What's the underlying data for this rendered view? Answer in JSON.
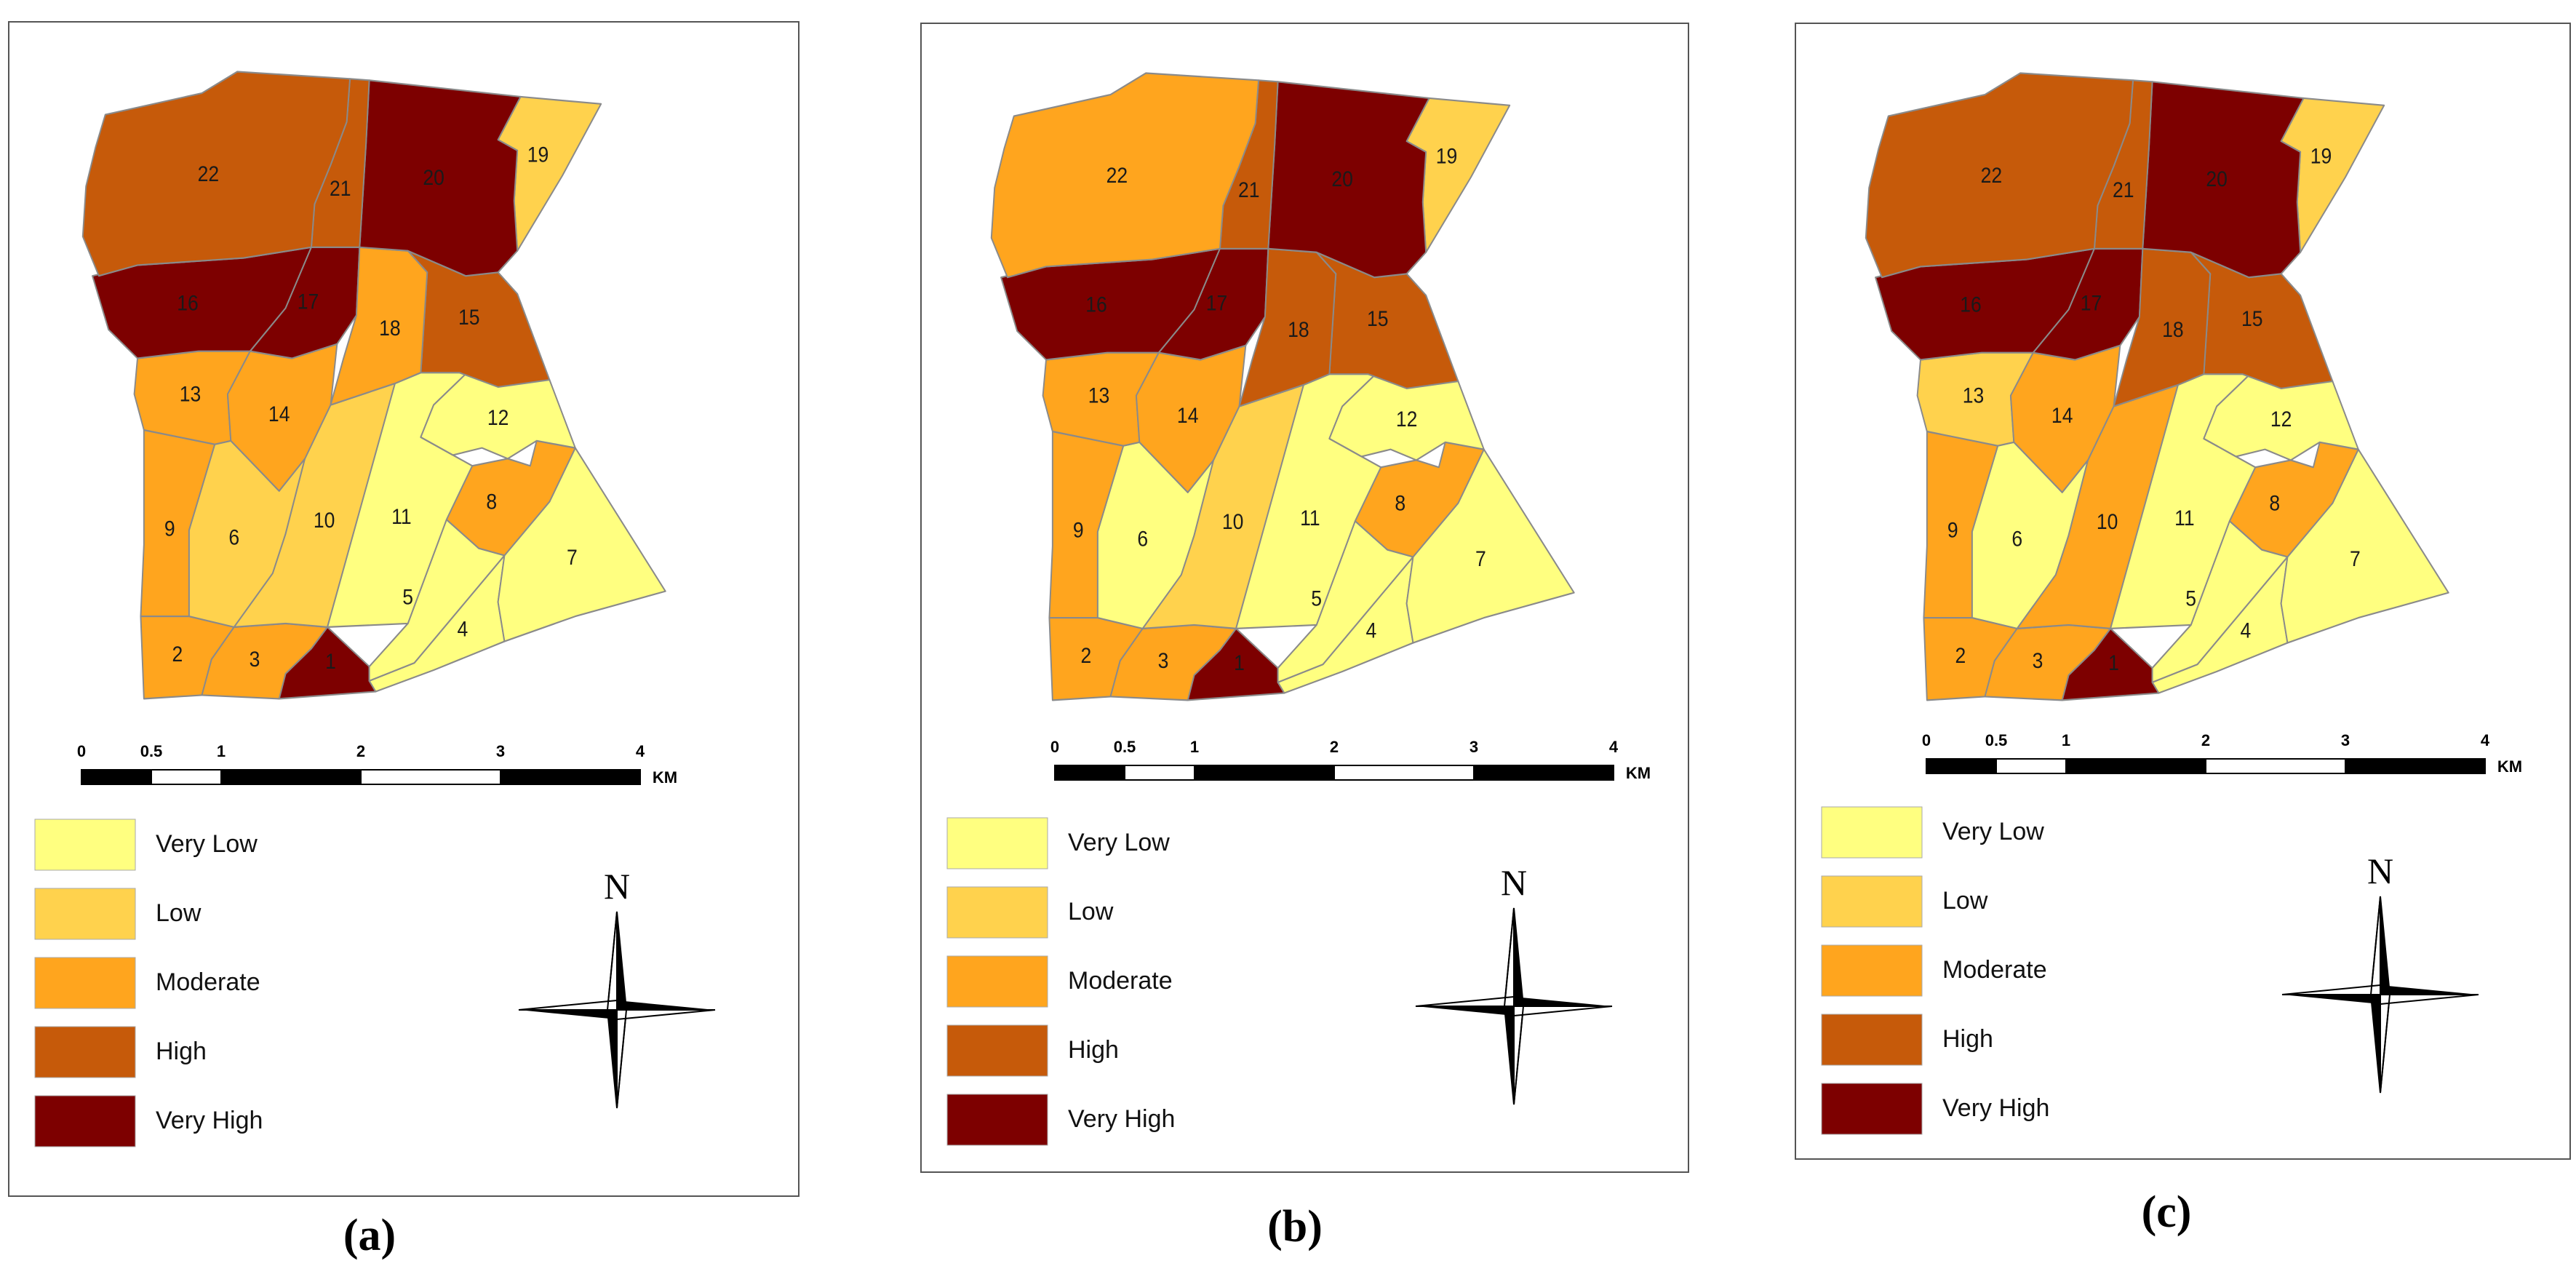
{
  "classes": [
    {
      "key": "VL",
      "label": "Very Low",
      "color": "#FFFF80"
    },
    {
      "key": "L",
      "label": "Low",
      "color": "#FFD24D"
    },
    {
      "key": "M",
      "label": "Moderate",
      "color": "#FFA51E"
    },
    {
      "key": "H",
      "label": "High",
      "color": "#C65A0A"
    },
    {
      "key": "VH",
      "label": "Very High",
      "color": "#7D0000"
    }
  ],
  "scale_bar": {
    "ticks": [
      "0",
      "0.5",
      "1",
      "2",
      "3",
      "4"
    ],
    "unit": "KM"
  },
  "north_label": "N",
  "panels": [
    {
      "label": "(a)",
      "zones": {
        "1": "VH",
        "2": "M",
        "3": "M",
        "4": "VL",
        "5": "VL",
        "6": "L",
        "7": "VL",
        "8": "M",
        "9": "M",
        "10": "L",
        "11": "VL",
        "12": "VL",
        "13": "M",
        "14": "M",
        "15": "H",
        "16": "VH",
        "17": "VH",
        "18": "M",
        "19": "L",
        "20": "VH",
        "21": "H",
        "22": "H"
      }
    },
    {
      "label": "(b)",
      "zones": {
        "1": "VH",
        "2": "M",
        "3": "M",
        "4": "VL",
        "5": "VL",
        "6": "VL",
        "7": "VL",
        "8": "M",
        "9": "M",
        "10": "L",
        "11": "VL",
        "12": "VL",
        "13": "M",
        "14": "M",
        "15": "H",
        "16": "VH",
        "17": "VH",
        "18": "H",
        "19": "L",
        "20": "VH",
        "21": "H",
        "22": "M"
      }
    },
    {
      "label": "(c)",
      "zones": {
        "1": "VH",
        "2": "M",
        "3": "M",
        "4": "VL",
        "5": "VL",
        "6": "VL",
        "7": "VL",
        "8": "M",
        "9": "M",
        "10": "M",
        "11": "VL",
        "12": "VL",
        "13": "L",
        "14": "M",
        "15": "H",
        "16": "VH",
        "17": "VH",
        "18": "H",
        "19": "L",
        "20": "VH",
        "21": "H",
        "22": "H"
      }
    }
  ]
}
